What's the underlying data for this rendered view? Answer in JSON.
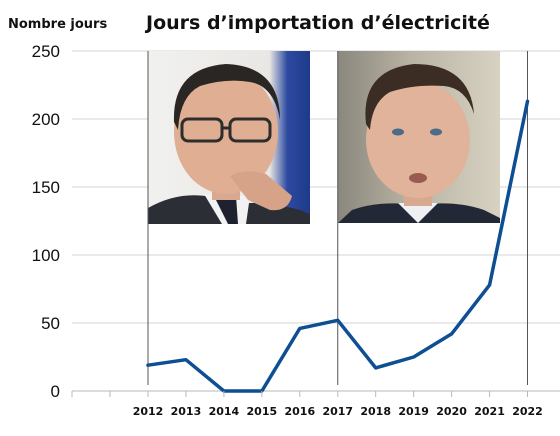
{
  "chart_data": {
    "type": "line",
    "title": "Jours d’importation d’électricité",
    "ylabel": "Nombre jours",
    "xlabel": "",
    "categories": [
      "2012",
      "2013",
      "2014",
      "2015",
      "2016",
      "2017",
      "2018",
      "2019",
      "2020",
      "2021",
      "2022"
    ],
    "series": [
      {
        "values": [
          19,
          23,
          0,
          0,
          46,
          52,
          17,
          25,
          42,
          78,
          213
        ]
      }
    ],
    "ylim": [
      0,
      250
    ],
    "yticks": [
      0,
      50,
      100,
      150,
      200,
      250
    ],
    "grid": "horizontal",
    "line_color": "#0e4f93",
    "grid_color": "#d6d6d6",
    "marker_years": [
      "2012",
      "2017",
      "2022"
    ],
    "photos": [
      {
        "position": "left",
        "subject": "portrait-man-glasses"
      },
      {
        "position": "right",
        "subject": "portrait-man"
      }
    ]
  }
}
